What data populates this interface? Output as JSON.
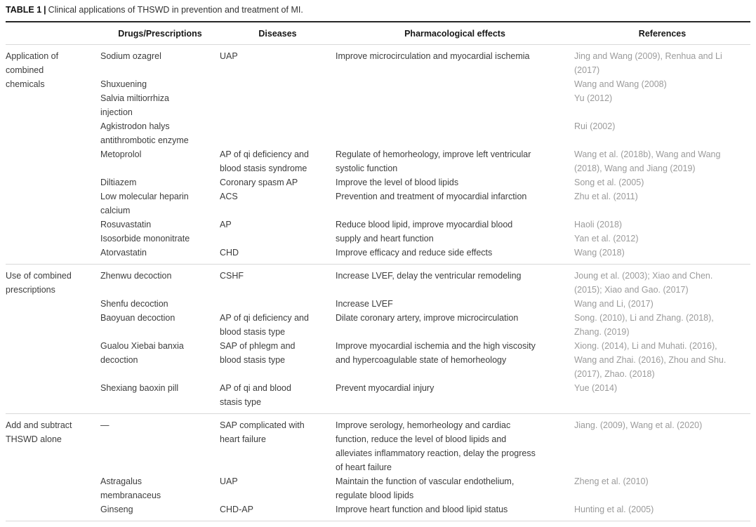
{
  "title": {
    "label": "TABLE 1",
    "separator": "|",
    "text": "Clinical applications of THSWD in prevention and treatment of MI."
  },
  "columns": [
    "",
    "Drugs/Prescriptions",
    "Diseases",
    "Pharmacological effects",
    "References"
  ],
  "colors": {
    "body_text": "#3d3d3d",
    "reference_text": "#9b9b9b",
    "rule_dark": "#262626",
    "rule_light": "#d9d9d9"
  },
  "sections": [
    {
      "category": "Application of\ncombined\nchemicals",
      "rows": [
        {
          "drug": "Sodium ozagrel",
          "disease": "UAP",
          "effect": "Improve microcirculation and myocardial ischemia",
          "refs": "Jing and Wang (2009), Renhua and Li\n(2017)"
        },
        {
          "drug": "Shuxuening",
          "disease": "",
          "effect": "",
          "refs": "Wang and Wang (2008)"
        },
        {
          "drug": "Salvia miltiorrhiza\ninjection",
          "disease": "",
          "effect": "",
          "refs": "Yu (2012)"
        },
        {
          "drug": "Agkistrodon halys\nantithrombotic enzyme",
          "disease": "",
          "effect": "",
          "refs": "Rui (2002)"
        },
        {
          "drug": "Metoprolol",
          "disease": "AP of qi deficiency and\nblood stasis syndrome",
          "effect": "Regulate of hemorheology, improve left ventricular\nsystolic function",
          "refs": "Wang et al. (2018b), Wang and Wang\n(2018), Wang and Jiang (2019)"
        },
        {
          "drug": "Diltiazem",
          "disease": "Coronary spasm AP",
          "effect": "Improve the level of blood lipids",
          "refs": "Song et al. (2005)"
        },
        {
          "drug": "Low molecular heparin\ncalcium",
          "disease": "ACS",
          "effect": "Prevention and treatment of myocardial infarction",
          "refs": "Zhu et al. (2011)"
        },
        {
          "drug": "Rosuvastatin\nIsosorbide mononitrate",
          "disease": "AP",
          "effect": "Reduce blood lipid, improve myocardial blood\nsupply and heart function",
          "refs": "Haoli (2018)\nYan et al. (2012)"
        },
        {
          "drug": "Atorvastatin",
          "disease": "CHD",
          "effect": "Improve efficacy and reduce side effects",
          "refs": "Wang (2018)"
        }
      ]
    },
    {
      "category": "Use of combined\nprescriptions",
      "rows": [
        {
          "drug": "Zhenwu decoction",
          "disease": "CSHF",
          "effect": "Increase LVEF, delay the ventricular remodeling",
          "refs": "Joung et al. (2003); Xiao and Chen.\n(2015); Xiao and Gao. (2017)"
        },
        {
          "drug": "Shenfu decoction",
          "disease": "",
          "effect": "Increase LVEF",
          "refs": "Wang and Li, (2017)"
        },
        {
          "drug": "Baoyuan decoction",
          "disease": "AP of qi deficiency and\nblood stasis type",
          "effect": "Dilate coronary artery, improve microcirculation",
          "refs": "Song. (2010), Li and Zhang. (2018),\nZhang. (2019)"
        },
        {
          "drug": "Gualou Xiebai banxia\ndecoction",
          "disease": "SAP of phlegm and\nblood stasis type",
          "effect": "Improve myocardial ischemia and the high viscosity\nand hypercoagulable state of hemorheology",
          "refs": "Xiong. (2014), Li and Muhati. (2016),\nWang and Zhai. (2016), Zhou and Shu.\n(2017), Zhao. (2018)"
        },
        {
          "drug": "Shexiang baoxin pill",
          "disease": "AP of qi and blood\nstasis type",
          "effect": "Prevent myocardial injury",
          "refs": "Yue (2014)"
        }
      ]
    },
    {
      "category": "Add and subtract\nTHSWD alone",
      "rows": [
        {
          "drug": "—",
          "disease": "SAP complicated with\nheart failure",
          "effect": "Improve serology, hemorheology and cardiac\nfunction, reduce the level of blood lipids and\nalleviates inflammatory reaction, delay the progress\nof heart failure",
          "refs": "Jiang. (2009), Wang et al. (2020)"
        },
        {
          "drug": "Astragalus\nmembranaceus",
          "disease": "UAP",
          "effect": "Maintain the function of vascular endothelium,\nregulate blood lipids",
          "refs": "Zheng et al. (2010)"
        },
        {
          "drug": "Ginseng",
          "disease": "CHD-AP",
          "effect": "Improve heart function and blood lipid status",
          "refs": "Hunting et al. (2005)"
        }
      ]
    }
  ]
}
